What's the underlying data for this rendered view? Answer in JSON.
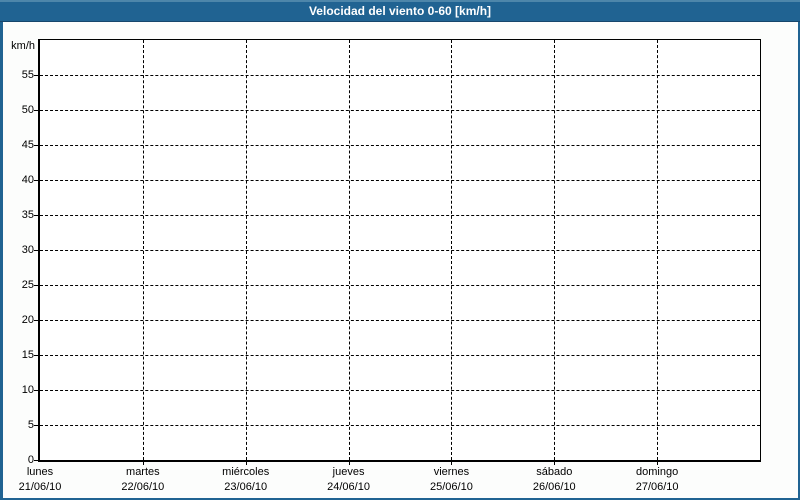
{
  "titlebar": {
    "title": "Velocidad del viento 0-60 [km/h]"
  },
  "colors": {
    "titlebar_bg": "#206392",
    "titlebar_highlight": "#4d86aa",
    "window_border": "#206392",
    "window_bg": "#fcfdfc",
    "plot_bg": "#ffffff",
    "grid_color": "#000000",
    "text_color": "#000000"
  },
  "chart_data": {
    "type": "line",
    "title": "Velocidad del viento 0-60 [km/h]",
    "ylabel": "km/h",
    "xlabel": "",
    "ylim": [
      0,
      60
    ],
    "ytick_step": 5,
    "yticks": [
      0,
      5,
      10,
      15,
      20,
      25,
      30,
      35,
      40,
      45,
      50,
      55
    ],
    "x_categories": [
      {
        "day": "lunes",
        "date": "21/06/10"
      },
      {
        "day": "martes",
        "date": "22/06/10"
      },
      {
        "day": "miércoles",
        "date": "23/06/10"
      },
      {
        "day": "jueves",
        "date": "24/06/10"
      },
      {
        "day": "viernes",
        "date": "25/06/10"
      },
      {
        "day": "sábado",
        "date": "26/06/10"
      },
      {
        "day": "domingo",
        "date": "27/06/10"
      }
    ],
    "series": [],
    "grid": "dashed",
    "legend_position": "none"
  }
}
